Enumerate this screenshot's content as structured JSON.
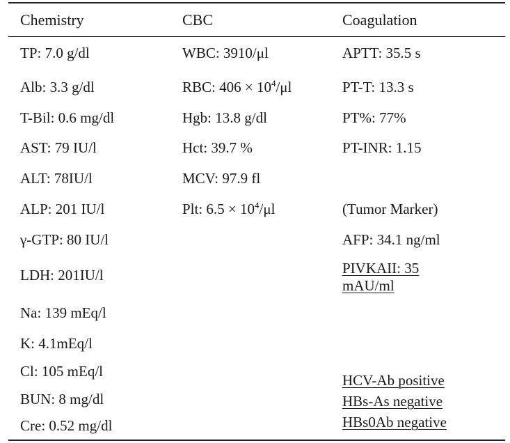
{
  "headers": {
    "chemistry": "Chemistry",
    "cbc": "CBC",
    "coagulation": "Coagulation"
  },
  "chemistry": [
    "TP: 7.0 g/dl",
    "Alb: 3.3 g/dl",
    "T-Bil: 0.6 mg/dl",
    "AST: 79 IU/l",
    "ALT: 78IU/l",
    "ALP: 201 IU/l",
    "γ-GTP: 80 IU/l",
    "LDH: 201IU/l",
    "Na: 139 mEq/l",
    "K: 4.1mEq/l",
    "Cl: 105 mEq/l",
    "BUN: 8 mg/dl",
    "Cre: 0.52 mg/dl"
  ],
  "cbc": {
    "wbc": "WBC: 3910/μl",
    "rbc": {
      "pre": "RBC: 406 × 10",
      "sup": "4",
      "post": "/μl"
    },
    "hgb": "Hgb: 13.8 g/dl",
    "hct": "Hct: 39.7 %",
    "mcv": "MCV: 97.9 fl",
    "plt": {
      "pre": "Plt: 6.5 × 10",
      "sup": "4",
      "post": "/μl"
    }
  },
  "coagulation": {
    "aptt": "APTT: 35.5 s",
    "pt_t": "PT-T: 13.3 s",
    "pt_pct": "PT%: 77%",
    "pt_inr": "PT-INR: 1.15",
    "tumor_marker_heading": "(Tumor Marker)",
    "afp": "AFP: 34.1 ng/ml",
    "pivka": "PIVKAII: 35 mAU/ml",
    "hcv_ab": "HCV-Ab positive",
    "hbs_as": "HBs-As negative",
    "hbs0ab": "HBs0Ab negative"
  }
}
